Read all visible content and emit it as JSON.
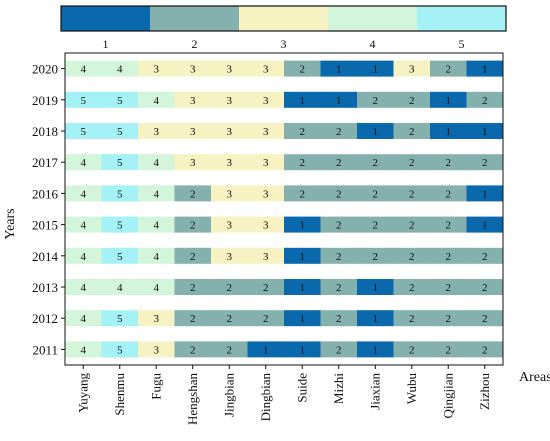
{
  "chart_data": {
    "type": "heatmap",
    "legend": {
      "categories": [
        "1",
        "2",
        "3",
        "4",
        "5"
      ],
      "colors": [
        "#0a69ad",
        "#84b0ae",
        "#f6f2c2",
        "#d3f5d9",
        "#a4f1f6"
      ]
    },
    "ylabel": "Years",
    "xlabel": "Areas",
    "x": [
      "Yuyang",
      "Shenmu",
      "Fugu",
      "Hengshan",
      "Jingbian",
      "Dingbian",
      "Suide",
      "Mizhi",
      "Jiaxian",
      "Wubu",
      "Qingjian",
      "Zizhou"
    ],
    "y": [
      "2020",
      "2019",
      "2018",
      "2017",
      "2016",
      "2015",
      "2014",
      "2013",
      "2012",
      "2011"
    ],
    "values": [
      [
        4,
        4,
        3,
        3,
        3,
        3,
        2,
        1,
        1,
        3,
        2,
        1
      ],
      [
        5,
        5,
        4,
        3,
        3,
        3,
        1,
        1,
        2,
        2,
        1,
        2
      ],
      [
        5,
        5,
        3,
        3,
        3,
        3,
        2,
        2,
        1,
        2,
        1,
        1
      ],
      [
        4,
        5,
        4,
        3,
        3,
        3,
        2,
        2,
        2,
        2,
        2,
        2
      ],
      [
        4,
        5,
        4,
        2,
        3,
        3,
        2,
        2,
        2,
        2,
        2,
        1
      ],
      [
        4,
        5,
        4,
        2,
        3,
        3,
        1,
        2,
        2,
        2,
        2,
        1
      ],
      [
        4,
        5,
        4,
        2,
        3,
        3,
        1,
        2,
        2,
        2,
        2,
        2
      ],
      [
        4,
        4,
        4,
        2,
        2,
        2,
        1,
        2,
        1,
        2,
        2,
        2
      ],
      [
        4,
        5,
        3,
        2,
        2,
        2,
        1,
        2,
        1,
        2,
        2,
        2
      ],
      [
        4,
        5,
        3,
        2,
        2,
        1,
        1,
        2,
        1,
        2,
        2,
        2
      ]
    ],
    "grid": false
  }
}
